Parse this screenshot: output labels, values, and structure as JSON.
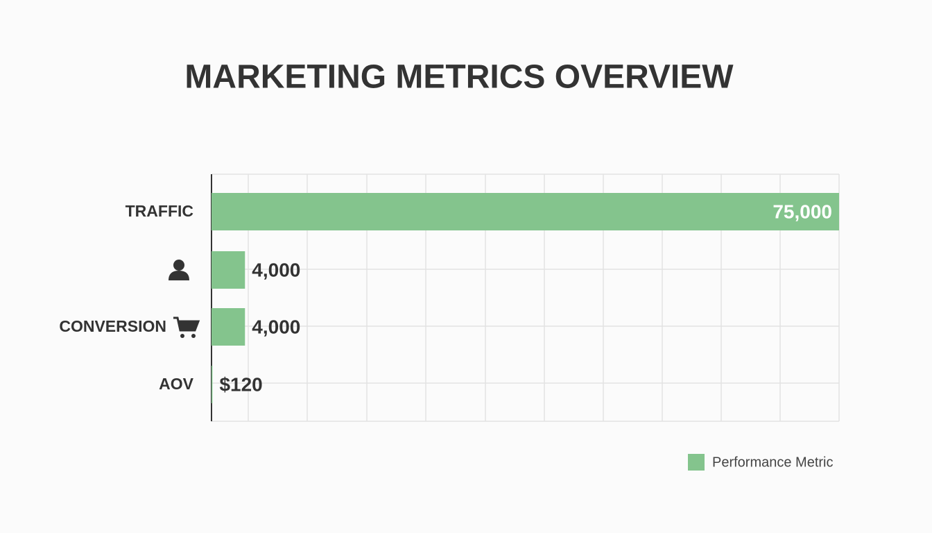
{
  "chart_data": {
    "type": "hbar",
    "title": "MARKETING METRICS OVERVIEW",
    "categories": [
      "TRAFFIC",
      null,
      "CONVERSION",
      "AOV"
    ],
    "series": [
      {
        "name": "Performance Metric",
        "color": "#84c48d",
        "values": [
          75000,
          4000,
          4000,
          120
        ],
        "value_labels": [
          "75,000",
          "4,000",
          "4,000",
          "$120"
        ]
      }
    ],
    "xlim": [
      0,
      75000
    ]
  }
}
